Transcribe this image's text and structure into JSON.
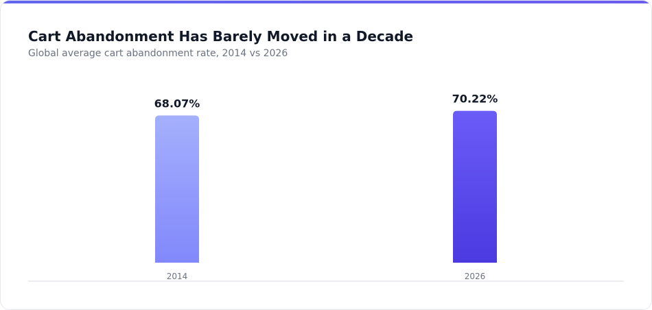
{
  "header": {
    "title": "Cart Abandonment Has Barely Moved in a Decade",
    "subtitle": "Global average cart abandonment rate, 2014 vs 2026"
  },
  "colors": {
    "accent": "#6366f1",
    "bar_2014_top": "#a5b0fc",
    "bar_2014_bottom": "#8188fb",
    "bar_2026_top": "#6b5cf8",
    "bar_2026_bottom": "#4a3ae0"
  },
  "chart_data": {
    "type": "bar",
    "categories": [
      "2014",
      "2026"
    ],
    "values": [
      68.07,
      70.22
    ],
    "value_labels": [
      "68.07%",
      "70.22%"
    ],
    "title": "Cart Abandonment Has Barely Moved in a Decade",
    "subtitle": "Global average cart abandonment rate, 2014 vs 2026",
    "xlabel": "",
    "ylabel": "",
    "ylim": [
      0,
      100
    ],
    "grid": false,
    "legend": "none"
  }
}
